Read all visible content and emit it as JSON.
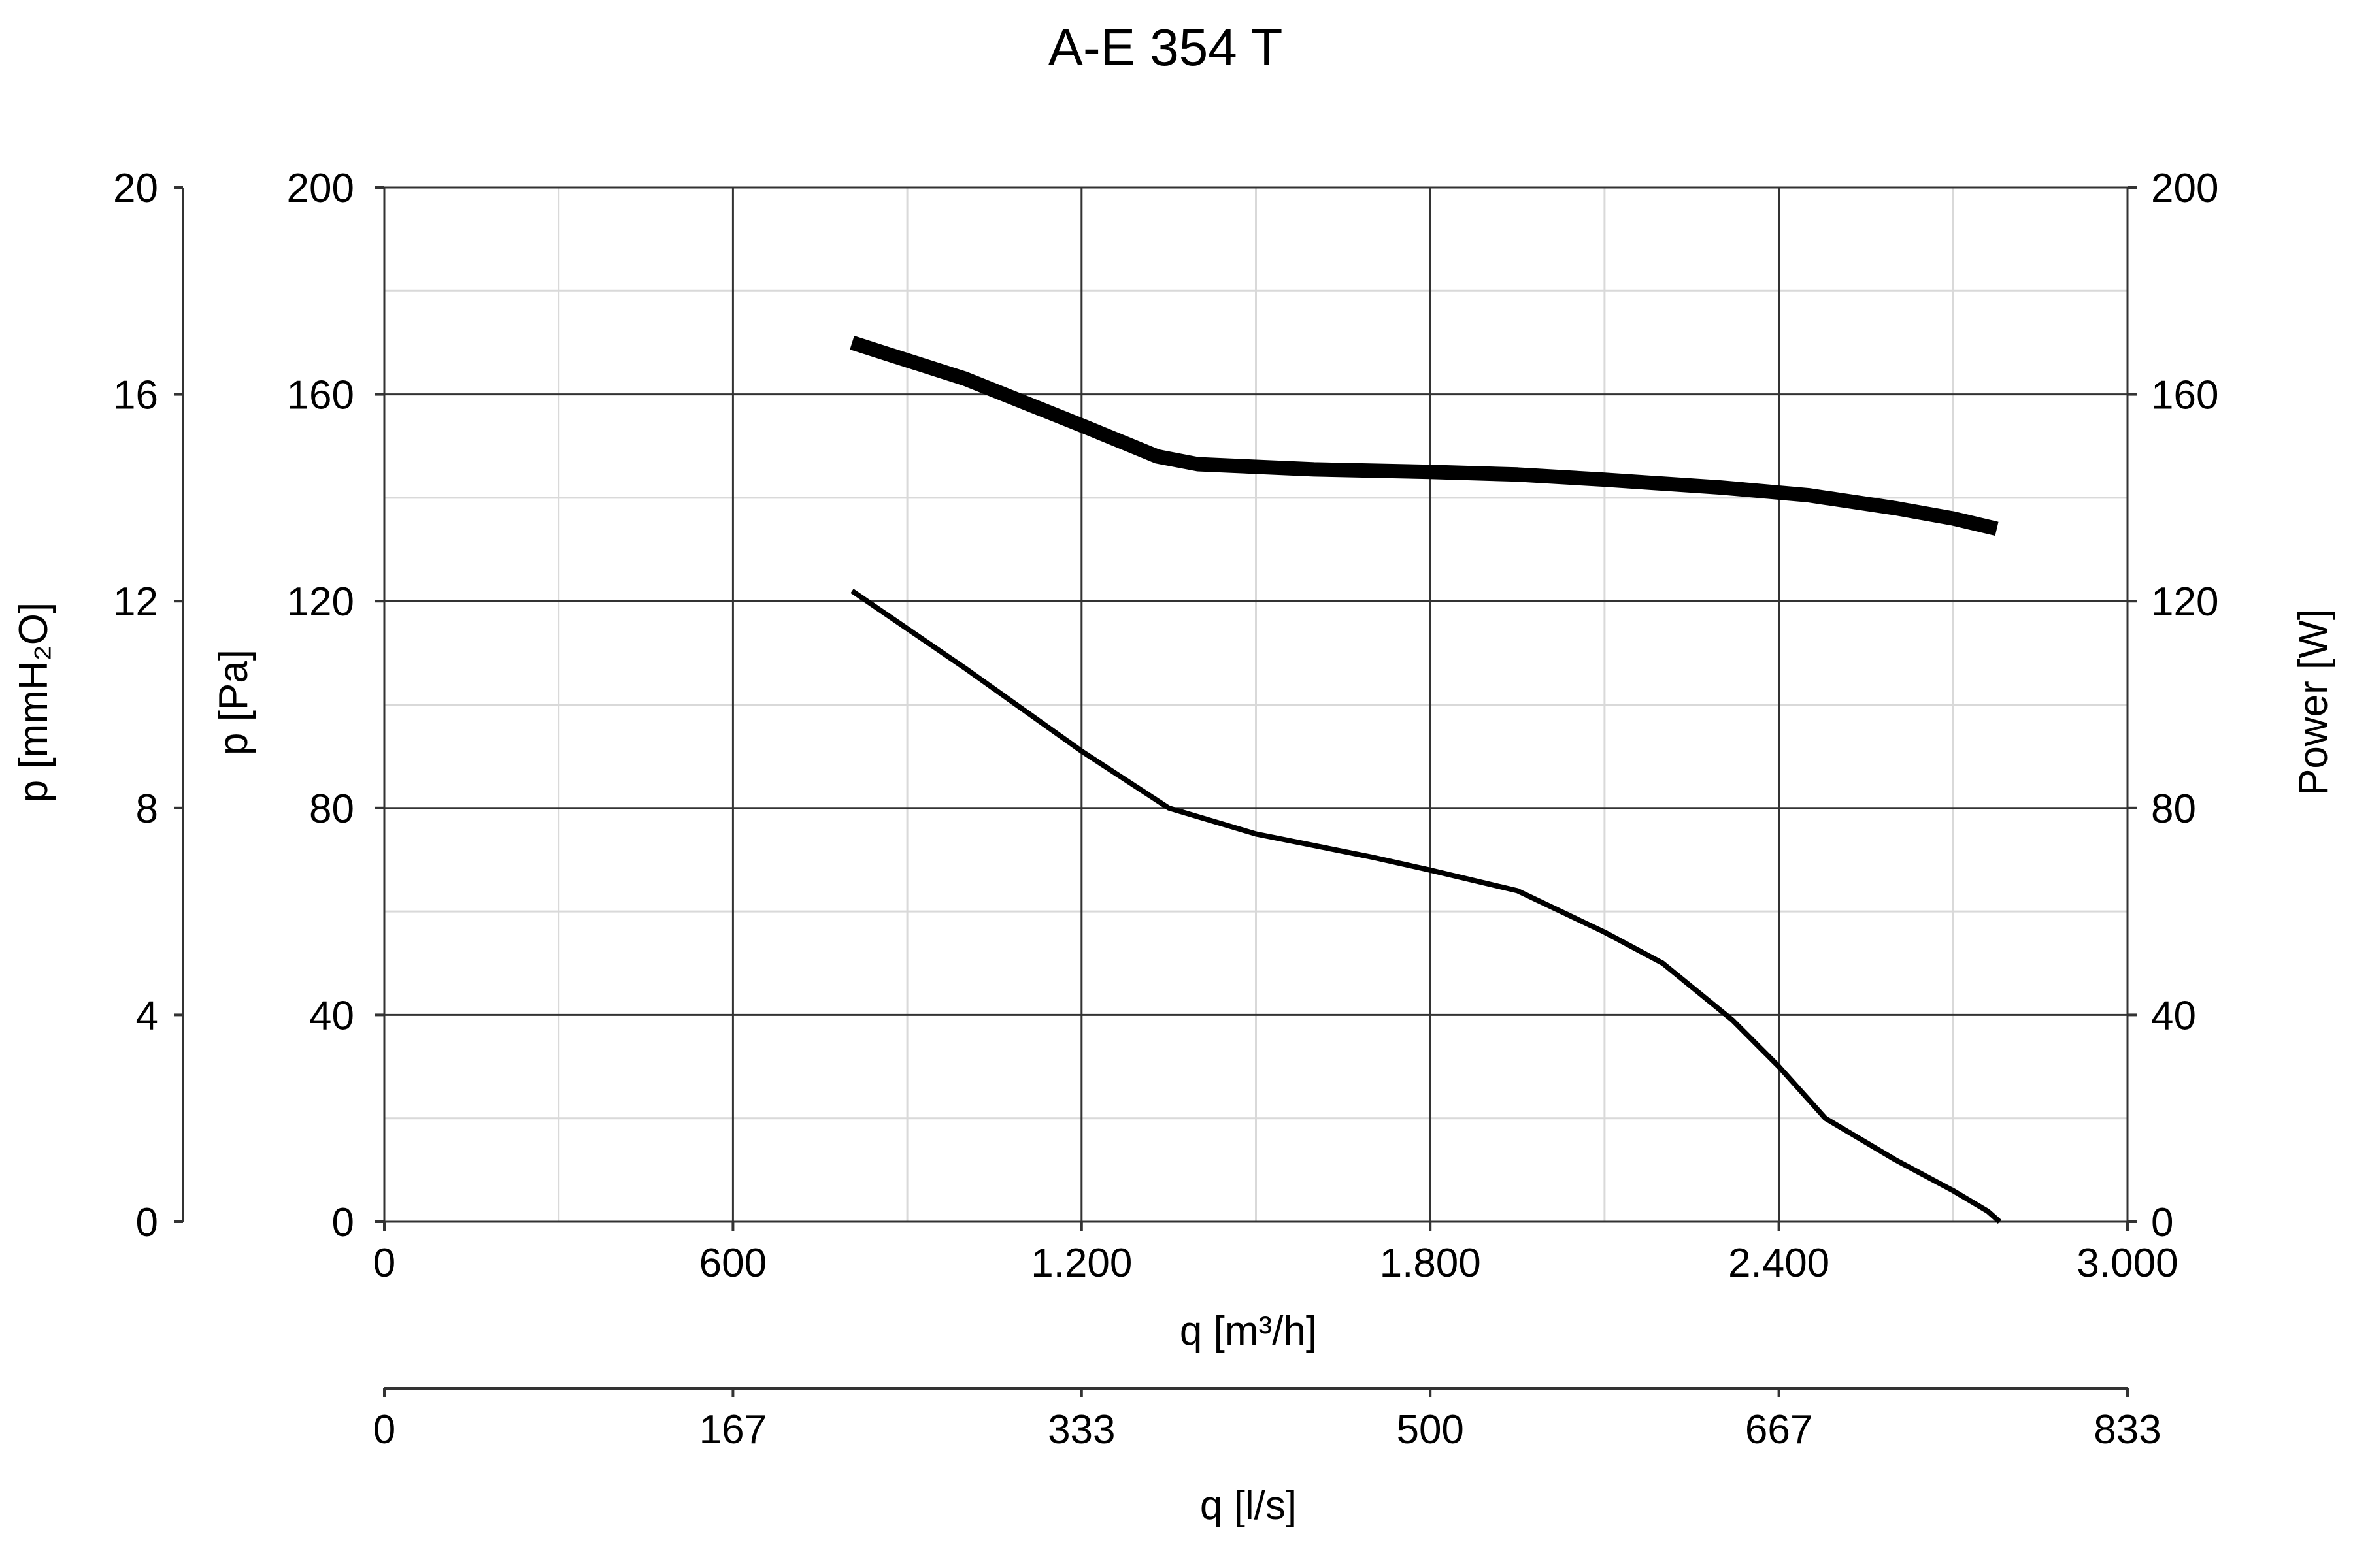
{
  "chart_data": {
    "type": "line",
    "title": "A-E 354 T",
    "x": {
      "label": "q [m³/h]",
      "range": [
        0,
        3000
      ],
      "ticks": [
        0,
        600,
        1200,
        1800,
        2400,
        3000
      ],
      "tick_labels": [
        "0",
        "600",
        "1.200",
        "1.800",
        "2.400",
        "3.000"
      ],
      "minor_step": 300
    },
    "x2": {
      "label": "q [l/s]",
      "tick_labels": [
        "0",
        "167",
        "333",
        "500",
        "667",
        "833"
      ]
    },
    "y_left_outer": {
      "label": "p [mmH₂O]",
      "range": [
        0,
        20
      ],
      "ticks": [
        "0",
        "4",
        "8",
        "12",
        "16",
        "20"
      ]
    },
    "y_left": {
      "label": "p [Pa]",
      "range": [
        0,
        200
      ],
      "ticks": [
        0,
        40,
        80,
        120,
        160,
        200
      ],
      "tick_labels": [
        "0",
        "40",
        "80",
        "120",
        "160",
        "200"
      ],
      "minor_step": 20
    },
    "y_right": {
      "label": "Power [W]",
      "range": [
        0,
        200
      ],
      "ticks": [
        "0",
        "40",
        "80",
        "120",
        "160",
        "200"
      ]
    },
    "grid": true,
    "series": [
      {
        "axis": "right",
        "style": "thick",
        "color": "#000000",
        "points": [
          [
            805,
            170
          ],
          [
            1000,
            163
          ],
          [
            1200,
            154
          ],
          [
            1330,
            148
          ],
          [
            1400,
            146.5
          ],
          [
            1600,
            145.5
          ],
          [
            1800,
            145
          ],
          [
            1950,
            144.5
          ],
          [
            2100,
            143.5
          ],
          [
            2300,
            142
          ],
          [
            2450,
            140.5
          ],
          [
            2600,
            138
          ],
          [
            2700,
            136
          ],
          [
            2775,
            134
          ]
        ]
      },
      {
        "axis": "left",
        "style": "thin",
        "color": "#000000",
        "points": [
          [
            805,
            122
          ],
          [
            1000,
            107
          ],
          [
            1200,
            91
          ],
          [
            1350,
            80
          ],
          [
            1500,
            75
          ],
          [
            1700,
            70.5
          ],
          [
            1800,
            68
          ],
          [
            1950,
            64
          ],
          [
            2100,
            56
          ],
          [
            2200,
            50
          ],
          [
            2320,
            39
          ],
          [
            2400,
            30
          ],
          [
            2480,
            20
          ],
          [
            2600,
            12
          ],
          [
            2700,
            6
          ],
          [
            2760,
            2
          ],
          [
            2780,
            0
          ]
        ]
      }
    ]
  }
}
